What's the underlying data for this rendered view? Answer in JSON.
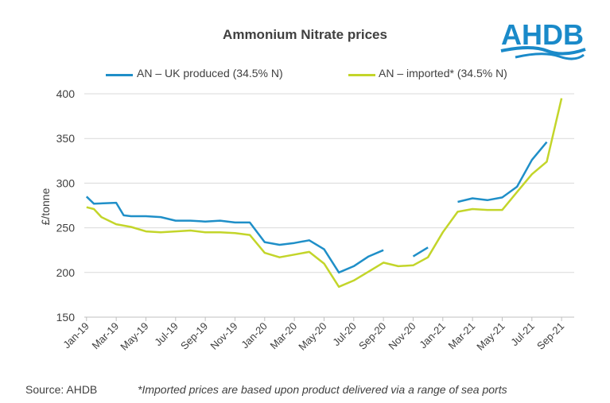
{
  "title": "Ammonium Nitrate prices",
  "logo": {
    "text": "AHDB",
    "color": "#1a8ac9"
  },
  "source": "Source: AHDB",
  "footnote": "*Imported prices are based upon product delivered via a range of sea ports",
  "chart_data": {
    "type": "line",
    "ylabel": "£/tonne",
    "ylim": [
      150,
      400
    ],
    "yticks": [
      150,
      200,
      250,
      300,
      350,
      400
    ],
    "grid": true,
    "legend_position": "top",
    "x": [
      "Jan-19",
      "Feb-19",
      "Mar-19",
      "Apr-19",
      "May-19",
      "Jun-19",
      "Jul-19",
      "Aug-19",
      "Sep-19",
      "Oct-19",
      "Nov-19",
      "Dec-19",
      "Jan-20",
      "Feb-20",
      "Mar-20",
      "Apr-20",
      "May-20",
      "Jun-20",
      "Jul-20",
      "Aug-20",
      "Sep-20",
      "Oct-20",
      "Nov-20",
      "Dec-20",
      "Jan-21",
      "Feb-21",
      "Mar-21",
      "Apr-21",
      "May-21",
      "Jun-21",
      "Jul-21",
      "Aug-21",
      "Sep-21"
    ],
    "xtick_labels": [
      "Jan-19",
      "Mar-19",
      "May-19",
      "Jul-19",
      "Sep-19",
      "Nov-19",
      "Jan-20",
      "Mar-20",
      "May-20",
      "Jul-20",
      "Sep-20",
      "Nov-20",
      "Jan-21",
      "Mar-21",
      "May-21",
      "Jul-21",
      "Sep-21"
    ],
    "series": [
      {
        "name": "AN – UK produced (34.5% N)",
        "color": "#1f8fc8",
        "points": [
          [
            "Jan-19",
            285
          ],
          [
            "Jan-19",
            277
          ],
          [
            "Mar-19",
            278
          ],
          [
            "Mar-19",
            264
          ],
          [
            "Apr-19",
            263
          ],
          [
            "May-19",
            263
          ],
          [
            "Jun-19",
            262
          ],
          [
            "Jul-19",
            258
          ],
          [
            "Aug-19",
            258
          ],
          [
            "Sep-19",
            257
          ],
          [
            "Oct-19",
            258
          ],
          [
            "Nov-19",
            256
          ],
          [
            "Dec-19",
            256
          ],
          [
            "Jan-20",
            234
          ],
          [
            "Feb-20",
            231
          ],
          [
            "Mar-20",
            233
          ],
          [
            "Apr-20",
            236
          ],
          [
            "May-20",
            226
          ],
          [
            "Jun-20",
            200
          ],
          [
            "Jul-20",
            207
          ],
          [
            "Aug-20",
            218
          ],
          [
            "Sep-20",
            225
          ],
          null,
          [
            "Nov-20",
            218
          ],
          [
            "Dec-20",
            228
          ],
          null,
          [
            "Feb-21",
            279
          ],
          [
            "Mar-21",
            283
          ],
          [
            "Apr-21",
            281
          ],
          [
            "May-21",
            284
          ],
          [
            "Jun-21",
            296
          ],
          [
            "Jul-21",
            326
          ],
          [
            "Aug-21",
            346
          ]
        ]
      },
      {
        "name": "AN – imported* (34.5% N)",
        "color": "#c3d52a",
        "points": [
          [
            "Jan-19",
            273
          ],
          [
            "Jan-19",
            271
          ],
          [
            "Feb-19",
            262
          ],
          [
            "Mar-19",
            254
          ],
          [
            "Apr-19",
            251
          ],
          [
            "May-19",
            246
          ],
          [
            "Jun-19",
            245
          ],
          [
            "Jul-19",
            246
          ],
          [
            "Aug-19",
            247
          ],
          [
            "Sep-19",
            245
          ],
          [
            "Oct-19",
            245
          ],
          [
            "Nov-19",
            244
          ],
          [
            "Dec-19",
            242
          ],
          [
            "Jan-20",
            222
          ],
          [
            "Feb-20",
            217
          ],
          [
            "Mar-20",
            220
          ],
          [
            "Apr-20",
            223
          ],
          [
            "May-20",
            210
          ],
          [
            "Jun-20",
            184
          ],
          [
            "Jul-20",
            191
          ],
          [
            "Aug-20",
            201
          ],
          [
            "Sep-20",
            211
          ],
          [
            "Oct-20",
            207
          ],
          [
            "Nov-20",
            208
          ],
          [
            "Dec-20",
            217
          ],
          [
            "Jan-21",
            245
          ],
          [
            "Feb-21",
            268
          ],
          [
            "Mar-21",
            271
          ],
          [
            "Apr-21",
            270
          ],
          [
            "May-21",
            270
          ],
          [
            "Jun-21",
            290
          ],
          [
            "Jul-21",
            310
          ],
          [
            "Aug-21",
            324
          ],
          [
            "Sep-21",
            395
          ]
        ]
      }
    ]
  }
}
